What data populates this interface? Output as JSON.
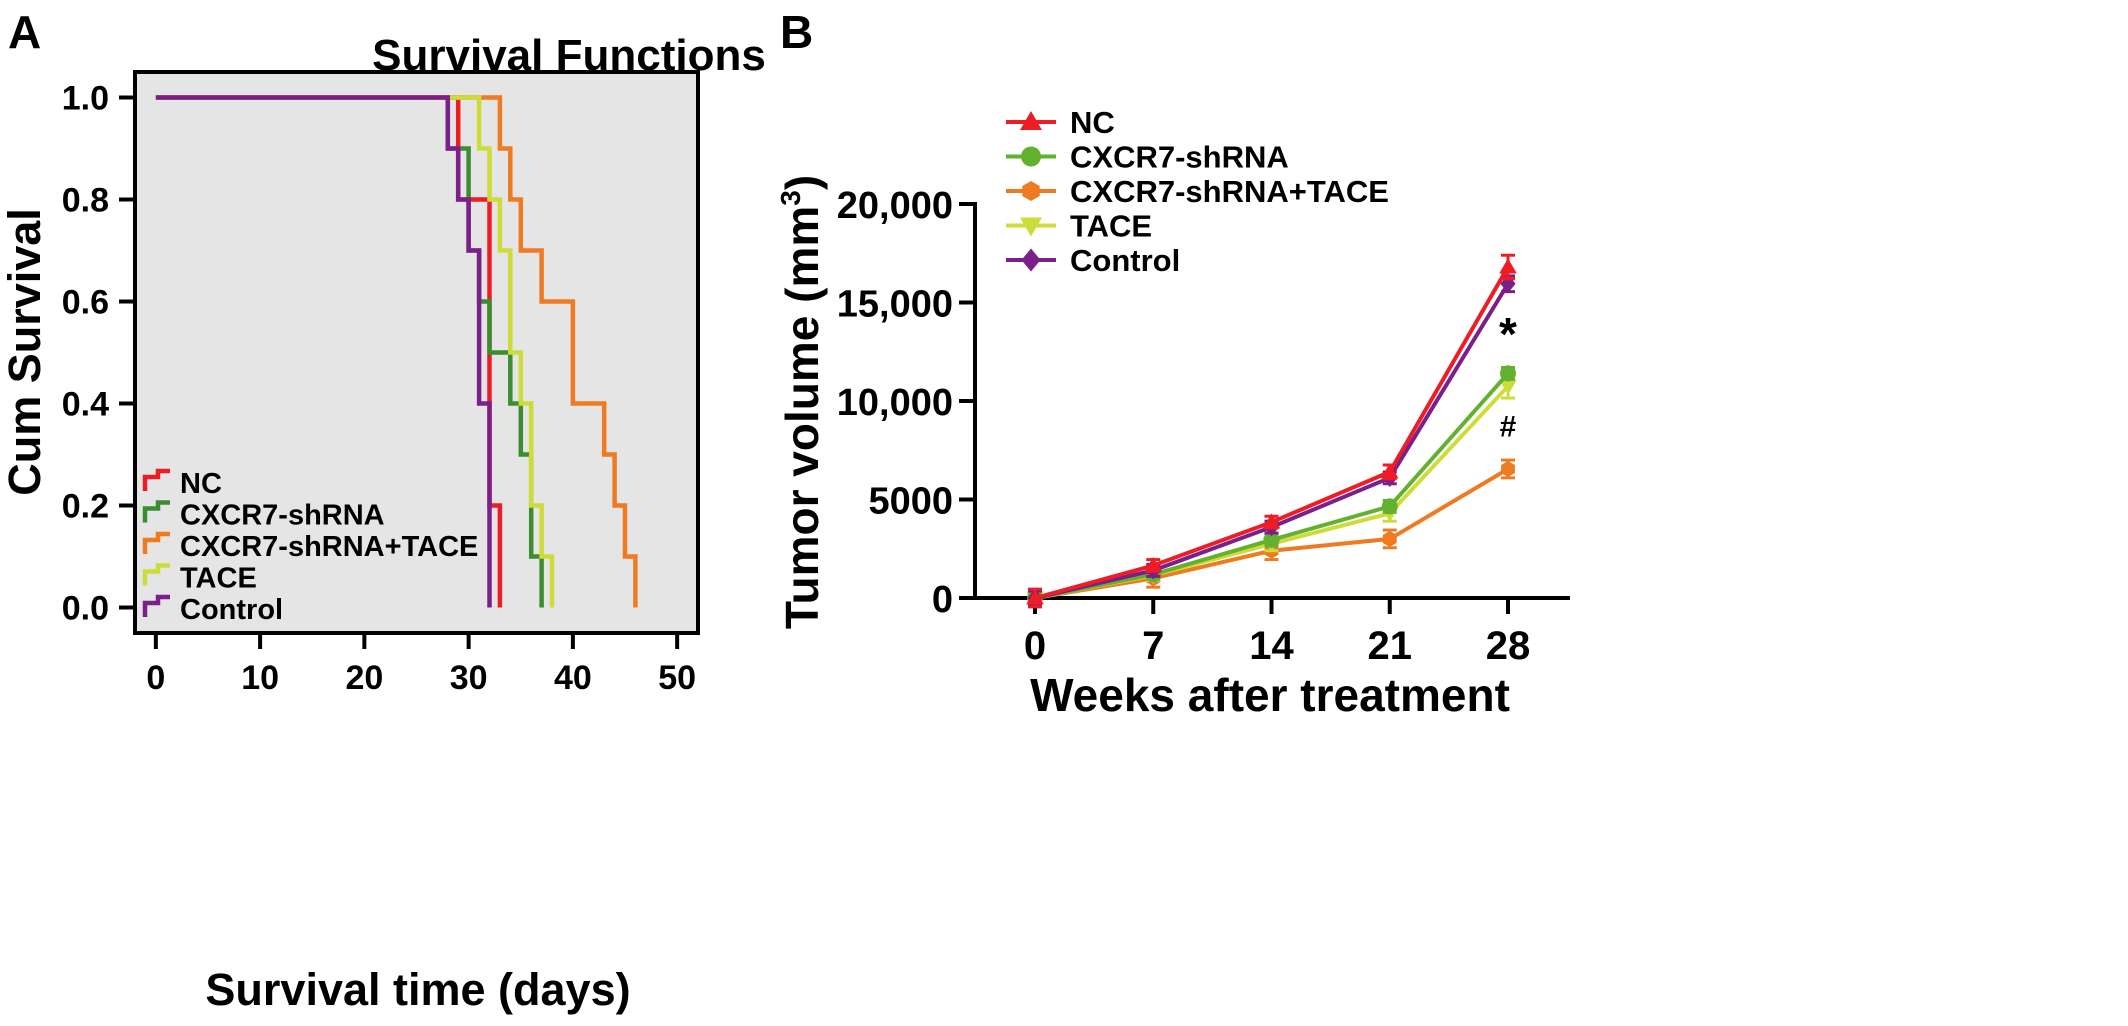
{
  "panels": {
    "a": {
      "letter": "A"
    },
    "b": {
      "letter": "B"
    }
  },
  "colors": {
    "NC": "#ee1c24",
    "CXCR7-shRNA": "#3c8d2f",
    "CXCR7-shRNA+TACE": "#ee7b21",
    "TACE": "#cddc39",
    "Control": "#7b1f8b"
  },
  "colors_b": {
    "NC": "#ee1c24",
    "CXCR7-shRNA": "#62b22f",
    "CXCR7-shRNA+TACE": "#ee7b21",
    "TACE": "#cddc39",
    "Control": "#7b1f8b"
  },
  "chart_data": [
    {
      "type": "line",
      "subtype": "kaplan-meier step",
      "title": "Survival Functions",
      "xlabel": "Survival time (days)",
      "ylabel": "Cum Survival",
      "xlim": [
        -2,
        52
      ],
      "ylim": [
        -0.05,
        1.05
      ],
      "xticks": [
        "0",
        "10",
        "20",
        "30",
        "40",
        "50"
      ],
      "yticks": [
        "0.0",
        "0.2",
        "0.4",
        "0.6",
        "0.8",
        "1.0"
      ],
      "plot_background": "#e5e5e5",
      "legend_position": "bottom-left",
      "series": [
        {
          "name": "NC",
          "x": [
            0,
            29,
            29,
            32,
            32,
            33,
            33
          ],
          "y": [
            1,
            1,
            0.8,
            0.8,
            0.2,
            0.2,
            0
          ]
        },
        {
          "name": "CXCR7-shRNA",
          "x": [
            0,
            28,
            28,
            29,
            29,
            30,
            30,
            31,
            31,
            32,
            32,
            34,
            34,
            35,
            35,
            36,
            36,
            37,
            37
          ],
          "y": [
            1,
            1,
            0.9,
            0.9,
            0.9,
            0.9,
            0.7,
            0.7,
            0.6,
            0.6,
            0.5,
            0.5,
            0.4,
            0.4,
            0.3,
            0.3,
            0.1,
            0.1,
            0
          ]
        },
        {
          "name": "CXCR7-shRNA+TACE",
          "x": [
            0,
            33,
            33,
            34,
            34,
            35,
            35,
            37,
            37,
            40,
            40,
            43,
            43,
            44,
            44,
            45,
            45,
            46,
            46
          ],
          "y": [
            1,
            1,
            0.9,
            0.9,
            0.8,
            0.8,
            0.7,
            0.7,
            0.6,
            0.6,
            0.4,
            0.4,
            0.3,
            0.3,
            0.2,
            0.2,
            0.1,
            0.1,
            0
          ]
        },
        {
          "name": "TACE",
          "x": [
            0,
            31,
            31,
            32,
            32,
            33,
            33,
            34,
            34,
            35,
            35,
            36,
            36,
            37,
            37,
            38,
            38
          ],
          "y": [
            1,
            1,
            0.9,
            0.9,
            0.8,
            0.8,
            0.7,
            0.7,
            0.5,
            0.5,
            0.4,
            0.4,
            0.2,
            0.2,
            0.1,
            0.1,
            0
          ]
        },
        {
          "name": "Control",
          "x": [
            0,
            28,
            28,
            29,
            29,
            30,
            30,
            31,
            31,
            32,
            32
          ],
          "y": [
            1,
            1,
            0.9,
            0.9,
            0.8,
            0.8,
            0.7,
            0.7,
            0.4,
            0.4,
            0
          ]
        }
      ]
    },
    {
      "type": "line",
      "title": "",
      "xlabel": "Weeks after treatment",
      "ylabel": "Tumor volume (mm³)",
      "ylabel_main": "Tumor volume (mm",
      "ylabel_sup": "3",
      "ylabel_close": ")",
      "categories": [
        0,
        7,
        14,
        21,
        28
      ],
      "xticks": [
        "0",
        "7",
        "14",
        "21",
        "28"
      ],
      "yticks": [
        "0",
        "5000",
        "10,000",
        "15,000",
        "20,000"
      ],
      "ylim": [
        0,
        20000
      ],
      "legend_position": "top-left",
      "annotations": [
        {
          "text": "*",
          "x": 28,
          "y": 12600
        },
        {
          "text": "#",
          "x": 28,
          "y": 8200
        }
      ],
      "series": [
        {
          "name": "NC",
          "marker": "triangle-up",
          "values": [
            0,
            1650,
            3850,
            6400,
            16800
          ],
          "errors": [
            450,
            300,
            300,
            350,
            600
          ]
        },
        {
          "name": "CXCR7-shRNA",
          "marker": "circle",
          "values": [
            0,
            1200,
            2950,
            4650,
            11400
          ],
          "errors": [
            400,
            250,
            300,
            300,
            300
          ]
        },
        {
          "name": "CXCR7-shRNA+TACE",
          "marker": "hexagon",
          "values": [
            0,
            1000,
            2400,
            3000,
            6550
          ],
          "errors": [
            400,
            450,
            450,
            450,
            450
          ]
        },
        {
          "name": "TACE",
          "marker": "triangle-down",
          "values": [
            0,
            1150,
            2750,
            4300,
            10750
          ],
          "errors": [
            350,
            250,
            350,
            400,
            600
          ]
        },
        {
          "name": "Control",
          "marker": "diamond",
          "values": [
            0,
            1400,
            3600,
            6100,
            15950
          ],
          "errors": [
            350,
            300,
            300,
            300,
            400
          ]
        }
      ]
    }
  ]
}
